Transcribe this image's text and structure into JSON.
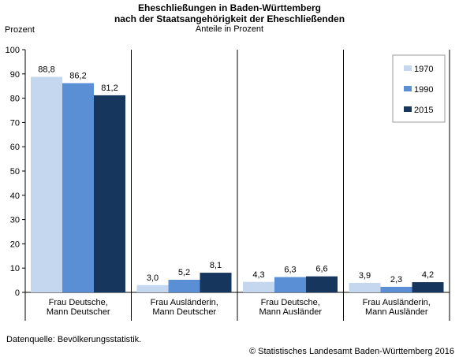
{
  "title_line1": "Eheschließungen in Baden-Württemberg",
  "title_line2": "nach der Staatsangehörigkeit der Eheschließenden",
  "subtitle": "Anteile in Prozent",
  "ylabel": "Prozent",
  "source": "Datenquelle: Bevölkerungsstatistik.",
  "copyright": "© Statistisches Landesamt Baden-Württemberg 2016",
  "colors": {
    "1970": "#c5d7ef",
    "1990": "#5a8fd5",
    "2015": "#16365d"
  },
  "chart_data": {
    "type": "bar",
    "title": "Eheschließungen in Baden-Württemberg nach der Staatsangehörigkeit der Eheschließenden",
    "subtitle": "Anteile in Prozent",
    "xlabel": "",
    "ylabel": "Prozent",
    "ylim": [
      0,
      100
    ],
    "yticks": [
      0,
      10,
      20,
      30,
      40,
      50,
      60,
      70,
      80,
      90,
      100
    ],
    "grid": false,
    "legend_position": "top-right",
    "categories": [
      [
        "Frau Deutsche,",
        "Mann Deutscher"
      ],
      [
        "Frau Ausländerin,",
        "Mann Deutscher"
      ],
      [
        "Frau Deutsche,",
        "Mann Ausländer"
      ],
      [
        "Frau Ausländerin,",
        "Mann Ausländer"
      ]
    ],
    "series": [
      {
        "name": "1970",
        "values": [
          88.8,
          3.0,
          4.3,
          3.9
        ],
        "labels": [
          "88,8",
          "3,0",
          "4,3",
          "3,9"
        ]
      },
      {
        "name": "1990",
        "values": [
          86.2,
          5.2,
          6.3,
          2.3
        ],
        "labels": [
          "86,2",
          "5,2",
          "6,3",
          "2,3"
        ]
      },
      {
        "name": "2015",
        "values": [
          81.2,
          8.1,
          6.6,
          4.2
        ],
        "labels": [
          "81,2",
          "8,1",
          "6,6",
          "4,2"
        ]
      }
    ]
  }
}
